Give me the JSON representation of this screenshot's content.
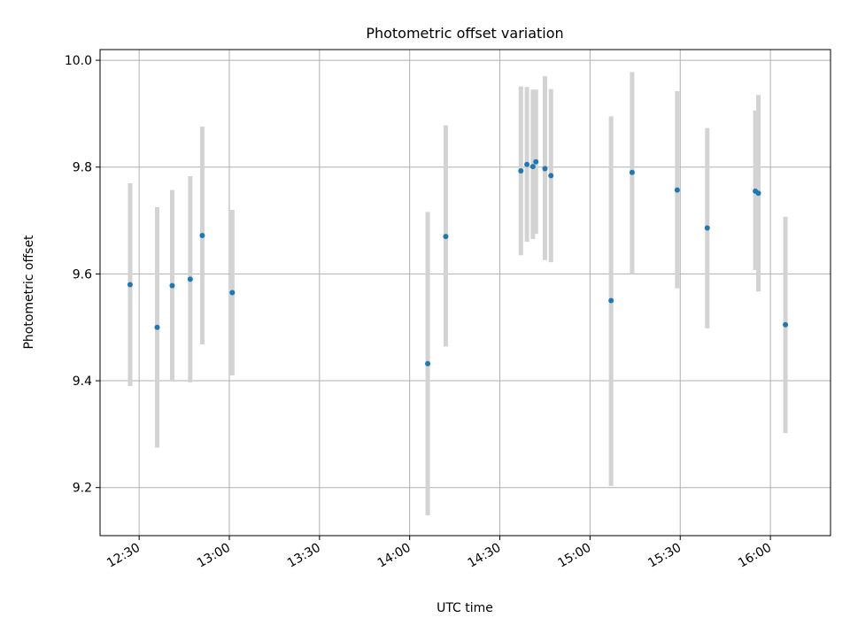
{
  "chart_data": {
    "type": "scatter",
    "title": "Photometric offset variation",
    "xlabel": "UTC time",
    "ylabel": "Photometric offset",
    "xlim": [
      "12:17",
      "16:20"
    ],
    "ylim": [
      9.11,
      10.02
    ],
    "x_ticks": [
      "12:30",
      "13:00",
      "13:30",
      "14:00",
      "14:30",
      "15:00",
      "15:30",
      "16:00"
    ],
    "y_ticks": [
      "9.2",
      "9.4",
      "9.6",
      "9.8",
      "10.0"
    ],
    "grid": true,
    "legend": "none",
    "colors": {
      "point": "#1f77b4",
      "errorbar": "#d3d3d3",
      "grid": "#b0b0b0"
    },
    "points": [
      {
        "x": "12:27",
        "y": 9.58,
        "ylow": 9.39,
        "yhigh": 9.77
      },
      {
        "x": "12:36",
        "y": 9.5,
        "ylow": 9.275,
        "yhigh": 9.725
      },
      {
        "x": "12:41",
        "y": 9.578,
        "ylow": 9.4,
        "yhigh": 9.757
      },
      {
        "x": "12:47",
        "y": 9.59,
        "ylow": 9.397,
        "yhigh": 9.783
      },
      {
        "x": "12:51",
        "y": 9.672,
        "ylow": 9.468,
        "yhigh": 9.876
      },
      {
        "x": "13:01",
        "y": 9.565,
        "ylow": 9.41,
        "yhigh": 9.72
      },
      {
        "x": "14:06",
        "y": 9.432,
        "ylow": 9.148,
        "yhigh": 9.716
      },
      {
        "x": "14:12",
        "y": 9.67,
        "ylow": 9.464,
        "yhigh": 9.878
      },
      {
        "x": "14:37",
        "y": 9.793,
        "ylow": 9.635,
        "yhigh": 9.951
      },
      {
        "x": "14:39",
        "y": 9.805,
        "ylow": 9.66,
        "yhigh": 9.95
      },
      {
        "x": "14:41",
        "y": 9.801,
        "ylow": 9.665,
        "yhigh": 9.945
      },
      {
        "x": "14:42",
        "y": 9.81,
        "ylow": 9.675,
        "yhigh": 9.945
      },
      {
        "x": "14:45",
        "y": 9.797,
        "ylow": 9.626,
        "yhigh": 9.97
      },
      {
        "x": "14:47",
        "y": 9.784,
        "ylow": 9.622,
        "yhigh": 9.946
      },
      {
        "x": "15:07",
        "y": 9.55,
        "ylow": 9.203,
        "yhigh": 9.895
      },
      {
        "x": "15:14",
        "y": 9.79,
        "ylow": 9.6,
        "yhigh": 9.978
      },
      {
        "x": "15:29",
        "y": 9.757,
        "ylow": 9.573,
        "yhigh": 9.942
      },
      {
        "x": "15:39",
        "y": 9.686,
        "ylow": 9.498,
        "yhigh": 9.873
      },
      {
        "x": "15:55",
        "y": 9.755,
        "ylow": 9.607,
        "yhigh": 9.906
      },
      {
        "x": "15:56",
        "y": 9.751,
        "ylow": 9.567,
        "yhigh": 9.935
      },
      {
        "x": "16:05",
        "y": 9.505,
        "ylow": 9.302,
        "yhigh": 9.707
      }
    ]
  }
}
